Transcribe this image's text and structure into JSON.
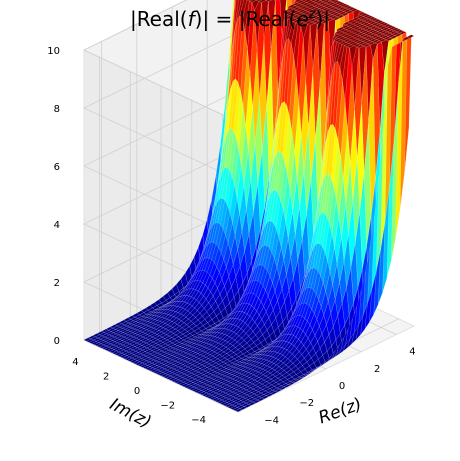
{
  "chart_data": {
    "type": "surface3d",
    "title_parts": {
      "lhs_pipe_open": "|",
      "lhs_real": "Real(",
      "lhs_var": "f",
      "lhs_close": ")|",
      "equals": " = ",
      "rhs_pipe_open": "|",
      "rhs_real": "Real(",
      "rhs_base": "e",
      "rhs_exp": "z",
      "rhs_close": ")|"
    },
    "xlabel": "Re(z)",
    "ylabel": "Im(z)",
    "zlabel": "",
    "function": "|Re(exp(z))|",
    "xlim": [
      -5,
      5
    ],
    "ylim": [
      -5,
      5
    ],
    "zlim": [
      0,
      10
    ],
    "x_ticks": [
      "−4",
      "−2",
      "0",
      "2",
      "4"
    ],
    "y_ticks": [
      "−4",
      "−2",
      "0",
      "2",
      "4"
    ],
    "z_ticks": [
      "0",
      "2",
      "4",
      "6",
      "8",
      "10"
    ],
    "colormap": "jet",
    "grid": true,
    "ridges_at_im": [
      -3.14,
      0,
      3.14
    ]
  }
}
